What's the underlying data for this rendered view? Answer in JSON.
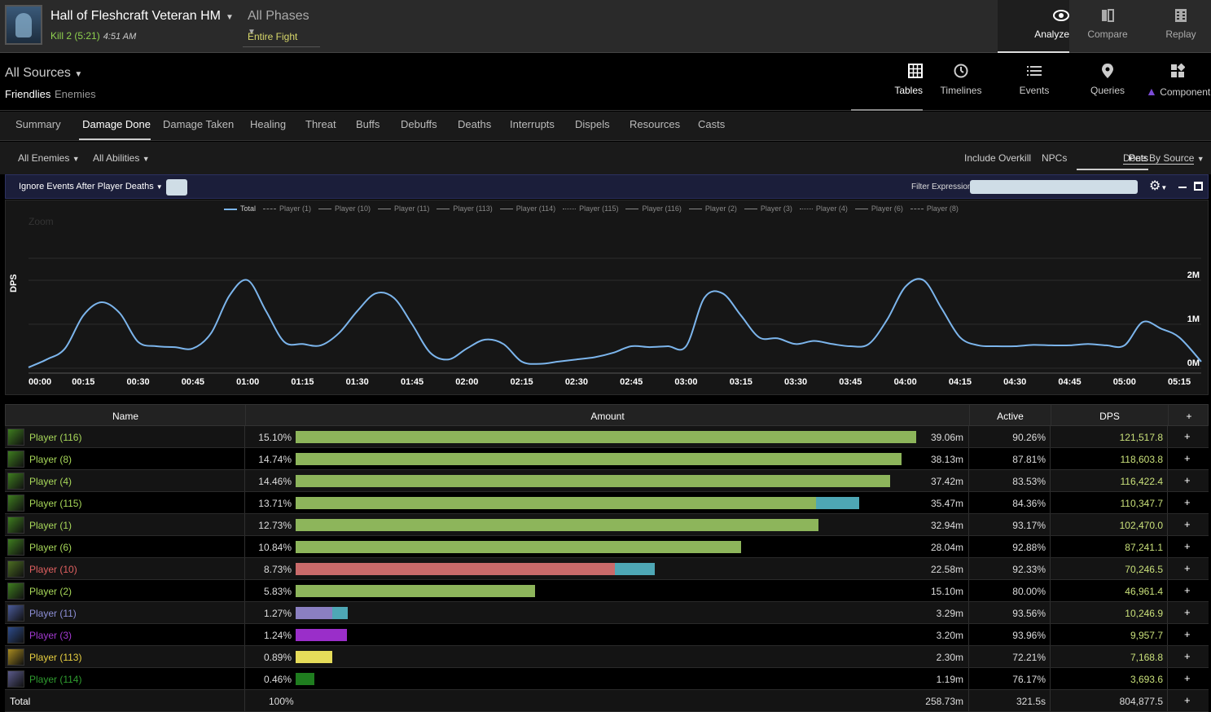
{
  "header": {
    "boss_name": "Hall of Fleshcraft Veteran HM",
    "kill": "Kill 2 (5:21)",
    "time": "4:51 AM",
    "phase": "All Phases",
    "phase_sub": "Entire Fight",
    "nav": [
      {
        "label": "Analyze",
        "icon": "eye-icon"
      },
      {
        "label": "Compare",
        "icon": "compare-icon"
      },
      {
        "label": "Replay",
        "icon": "replay-icon"
      }
    ]
  },
  "sources": {
    "label": "All Sources",
    "friendlies": "Friendlies",
    "enemies": "Enemies"
  },
  "views": [
    {
      "label": "Tables",
      "icon": "grid-icon"
    },
    {
      "label": "Timelines",
      "icon": "clock-icon"
    },
    {
      "label": "Events",
      "icon": "list-icon"
    },
    {
      "label": "Queries",
      "icon": "pin-icon"
    },
    {
      "label": "Component",
      "icon": "component-icon"
    }
  ],
  "tabs": [
    "Summary",
    "Damage Done",
    "Damage Taken",
    "Healing",
    "Threat",
    "Buffs",
    "Debuffs",
    "Deaths",
    "Interrupts",
    "Dispels",
    "Resources",
    "Casts"
  ],
  "filters": {
    "enemies": "All Enemies",
    "abilities": "All Abilities",
    "overkill": "Include Overkill",
    "npcs": "NPCs",
    "pets": "Pets",
    "done_by": "Done By Source"
  },
  "chart_toolbar": {
    "ignore": "Ignore Events After Player Deaths",
    "filter_label": "Filter Expression:"
  },
  "chart_data": {
    "type": "line",
    "ylabel": "DPS",
    "zoom_label": "Zoom",
    "legend": [
      "Total",
      "Player (1)",
      "Player (10)",
      "Player (11)",
      "Player (113)",
      "Player (114)",
      "Player (115)",
      "Player (116)",
      "Player (2)",
      "Player (3)",
      "Player (4)",
      "Player (6)",
      "Player (8)"
    ],
    "x_ticks": [
      "00:00",
      "00:15",
      "00:30",
      "00:45",
      "01:00",
      "01:15",
      "01:30",
      "01:45",
      "02:00",
      "02:15",
      "02:30",
      "02:45",
      "03:00",
      "03:15",
      "03:30",
      "03:45",
      "04:00",
      "04:15",
      "04:30",
      "04:45",
      "05:00",
      "05:15"
    ],
    "y_ticks": [
      "0M",
      "1M",
      "2M"
    ],
    "ylim": [
      0,
      2000000
    ],
    "xlim": [
      0,
      321
    ],
    "series": [
      {
        "name": "Total",
        "color": "#7cb5ec",
        "x": [
          0,
          5,
          10,
          15,
          20,
          25,
          30,
          35,
          40,
          45,
          50,
          55,
          60,
          65,
          70,
          75,
          80,
          85,
          90,
          95,
          100,
          105,
          110,
          115,
          120,
          125,
          130,
          135,
          140,
          145,
          150,
          155,
          160,
          165,
          170,
          175,
          180,
          185,
          190,
          195,
          200,
          205,
          210,
          215,
          220,
          225,
          230,
          235,
          240,
          245,
          250,
          255,
          260,
          265,
          270,
          275,
          280,
          285,
          290,
          295,
          300,
          305,
          310,
          315,
          321
        ],
        "y": [
          20000,
          200000,
          450000,
          1200000,
          1500000,
          1250000,
          600000,
          500000,
          480000,
          450000,
          800000,
          1650000,
          2000000,
          1300000,
          600000,
          550000,
          520000,
          800000,
          1300000,
          1700000,
          1600000,
          1000000,
          350000,
          200000,
          450000,
          650000,
          550000,
          150000,
          100000,
          150000,
          200000,
          250000,
          350000,
          500000,
          480000,
          500000,
          500000,
          1600000,
          1700000,
          1200000,
          700000,
          680000,
          550000,
          620000,
          550000,
          500000,
          550000,
          1100000,
          1850000,
          2000000,
          1350000,
          700000,
          520000,
          500000,
          500000,
          530000,
          520000,
          520000,
          550000,
          520000,
          520000,
          1050000,
          900000,
          700000,
          150000
        ]
      }
    ]
  },
  "table": {
    "headers": {
      "name": "Name",
      "amount": "Amount",
      "active": "Active",
      "dps": "DPS",
      "add": "+"
    },
    "rows": [
      {
        "name": "Player (116)",
        "color": "#a8d85a",
        "icon_color": "#3e7d1f",
        "pct": "15.10%",
        "pct_value": 15.1,
        "bar_color": "#8db55b",
        "pet_fraction": 0,
        "amount": "39.06m",
        "active": "90.26%",
        "dps": "121,517.8"
      },
      {
        "name": "Player (8)",
        "color": "#a8d85a",
        "icon_color": "#3e7d1f",
        "pct": "14.74%",
        "pct_value": 14.74,
        "bar_color": "#8db55b",
        "pet_fraction": 0,
        "amount": "38.13m",
        "active": "87.81%",
        "dps": "118,603.8"
      },
      {
        "name": "Player (4)",
        "color": "#a8d85a",
        "icon_color": "#3e7d1f",
        "pct": "14.46%",
        "pct_value": 14.46,
        "bar_color": "#8db55b",
        "pet_fraction": 0,
        "amount": "37.42m",
        "active": "83.53%",
        "dps": "116,422.4"
      },
      {
        "name": "Player (115)",
        "color": "#a8d85a",
        "icon_color": "#3e7d1f",
        "pct": "13.71%",
        "pct_value": 13.71,
        "bar_color": "#8db55b",
        "pet_fraction": 0.077,
        "amount": "35.47m",
        "active": "84.36%",
        "dps": "110,347.7"
      },
      {
        "name": "Player (1)",
        "color": "#a8d85a",
        "icon_color": "#3e7d1f",
        "pct": "12.73%",
        "pct_value": 12.73,
        "bar_color": "#8db55b",
        "pet_fraction": 0,
        "amount": "32.94m",
        "active": "93.17%",
        "dps": "102,470.0"
      },
      {
        "name": "Player (6)",
        "color": "#a8d85a",
        "icon_color": "#3e7d1f",
        "pct": "10.84%",
        "pct_value": 10.84,
        "bar_color": "#8db55b",
        "pet_fraction": 0,
        "amount": "28.04m",
        "active": "92.88%",
        "dps": "87,241.1"
      },
      {
        "name": "Player (10)",
        "color": "#e06060",
        "icon_color": "#4c6e22",
        "pct": "8.73%",
        "pct_value": 8.73,
        "bar_color": "#c96a6a",
        "pet_fraction": 0.11,
        "amount": "22.58m",
        "active": "92.33%",
        "dps": "70,246.5"
      },
      {
        "name": "Player (2)",
        "color": "#a8d85a",
        "icon_color": "#3e7d1f",
        "pct": "5.83%",
        "pct_value": 5.83,
        "bar_color": "#8db55b",
        "pet_fraction": 0,
        "amount": "15.10m",
        "active": "80.00%",
        "dps": "46,961.4"
      },
      {
        "name": "Player (11)",
        "color": "#8d8fd6",
        "icon_color": "#4a5b9a",
        "pct": "1.27%",
        "pct_value": 1.27,
        "bar_color": "#8a7fc1",
        "pet_fraction": 0.3,
        "amount": "3.29m",
        "active": "93.56%",
        "dps": "10,246.9"
      },
      {
        "name": "Player (3)",
        "color": "#a33ad1",
        "icon_color": "#2d4b8a",
        "pct": "1.24%",
        "pct_value": 1.24,
        "bar_color": "#9a2ec9",
        "pet_fraction": 0,
        "amount": "3.20m",
        "active": "93.96%",
        "dps": "9,957.7"
      },
      {
        "name": "Player (113)",
        "color": "#e8d040",
        "icon_color": "#a88a20",
        "pct": "0.89%",
        "pct_value": 0.89,
        "bar_color": "#e6dc5a",
        "pet_fraction": 0,
        "amount": "2.30m",
        "active": "72.21%",
        "dps": "7,168.8"
      },
      {
        "name": "Player (114)",
        "color": "#2f9c2f",
        "icon_color": "#5a5a8a",
        "pct": "0.46%",
        "pct_value": 0.46,
        "bar_color": "#1f7d1f",
        "pet_fraction": 0,
        "amount": "1.19m",
        "active": "76.17%",
        "dps": "3,693.6"
      }
    ],
    "total": {
      "name": "Total",
      "pct": "100%",
      "amount": "258.73m",
      "active": "321.5s",
      "dps": "804,877.5"
    }
  },
  "colors": {
    "pet_bar": "#4ea7b5",
    "total_line": "#7cb5ec",
    "accent_toolbar": "#1b1e3a"
  }
}
